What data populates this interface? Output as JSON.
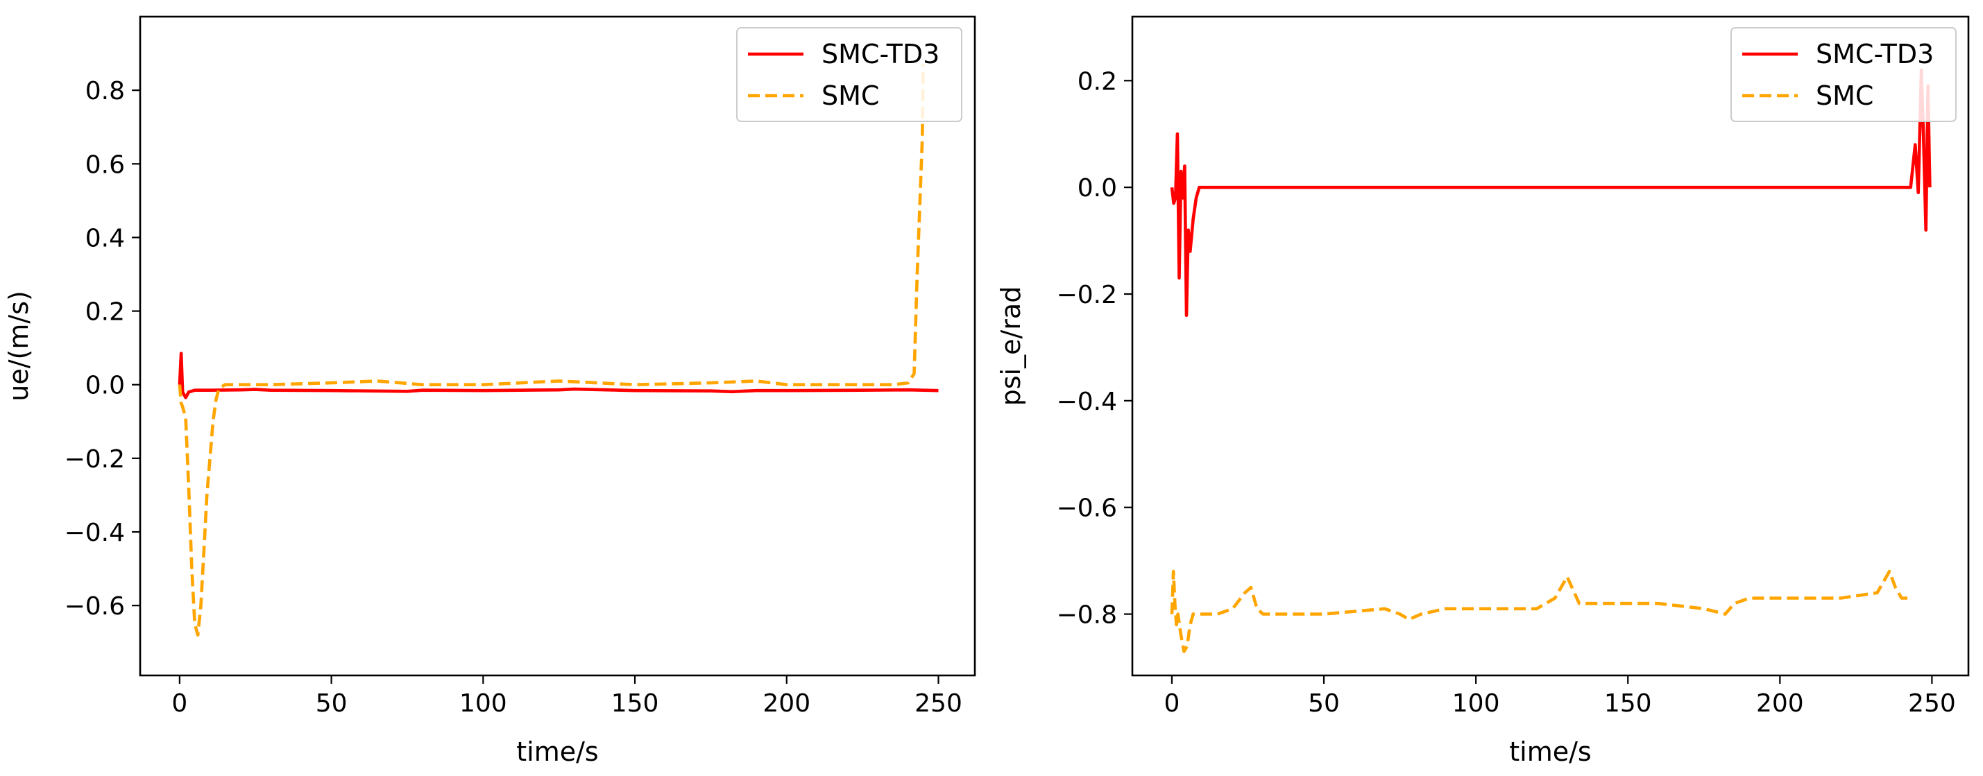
{
  "chart_data": [
    {
      "type": "line",
      "title": "",
      "xlabel": "time/s",
      "ylabel": "ue/(m/s)",
      "xlim": [
        -13,
        262
      ],
      "ylim": [
        -0.79,
        1.0
      ],
      "xticks": [
        0,
        50,
        100,
        150,
        200,
        250
      ],
      "yticks": [
        -0.6,
        -0.4,
        -0.2,
        0.0,
        0.2,
        0.4,
        0.6,
        0.8
      ],
      "xtick_labels": [
        "0",
        "50",
        "100",
        "150",
        "200",
        "250"
      ],
      "ytick_labels": [
        "−0.6",
        "−0.4",
        "−0.2",
        "0.0",
        "0.2",
        "0.4",
        "0.6",
        "0.8"
      ],
      "grid": false,
      "legend": "top-right",
      "series": [
        {
          "name": "SMC-TD3",
          "color": "#ff0000",
          "style": "solid",
          "x": [
            0,
            0.5,
            1,
            2,
            3,
            5,
            10,
            20,
            25,
            30,
            50,
            75,
            80,
            100,
            125,
            130,
            150,
            175,
            182,
            190,
            200,
            225,
            240,
            250
          ],
          "y": [
            0.0,
            0.085,
            -0.02,
            -0.035,
            -0.02,
            -0.015,
            -0.015,
            -0.014,
            -0.013,
            -0.015,
            -0.016,
            -0.018,
            -0.015,
            -0.016,
            -0.014,
            -0.012,
            -0.016,
            -0.017,
            -0.019,
            -0.016,
            -0.016,
            -0.015,
            -0.014,
            -0.016
          ]
        },
        {
          "name": "SMC",
          "color": "#ffa500",
          "style": "dashed",
          "x": [
            0,
            0.5,
            1,
            2,
            3,
            4,
            5,
            6,
            7,
            8,
            9,
            10,
            11,
            12,
            13,
            15,
            20,
            30,
            50,
            65,
            80,
            100,
            125,
            150,
            175,
            190,
            200,
            220,
            235,
            240,
            242,
            243,
            244,
            244.7,
            245
          ],
          "y": [
            0.0,
            -0.05,
            -0.06,
            -0.09,
            -0.28,
            -0.5,
            -0.65,
            -0.68,
            -0.6,
            -0.45,
            -0.3,
            -0.2,
            -0.1,
            -0.04,
            -0.01,
            0.0,
            0.0,
            0.0,
            0.005,
            0.01,
            0.0,
            0.0,
            0.01,
            0.0,
            0.005,
            0.01,
            0.0,
            0.0,
            0.0,
            0.005,
            0.03,
            0.3,
            0.52,
            0.67,
            0.87
          ]
        }
      ]
    },
    {
      "type": "line",
      "title": "",
      "xlabel": "time/s",
      "ylabel": "psi_e/rad",
      "xlim": [
        -13,
        262
      ],
      "ylim": [
        -0.915,
        0.32
      ],
      "xticks": [
        0,
        50,
        100,
        150,
        200,
        250
      ],
      "yticks": [
        -0.8,
        -0.6,
        -0.4,
        -0.2,
        0.0,
        0.2
      ],
      "xtick_labels": [
        "0",
        "50",
        "100",
        "150",
        "200",
        "250"
      ],
      "ytick_labels": [
        "−0.8",
        "−0.6",
        "−0.4",
        "−0.2",
        "0.0",
        "0.2"
      ],
      "grid": false,
      "legend": "top-right",
      "series": [
        {
          "name": "SMC-TD3",
          "color": "#ff0000",
          "style": "solid",
          "x": [
            0,
            0.6,
            1.2,
            1.8,
            2.4,
            3,
            3.6,
            4.2,
            4.8,
            5.4,
            6,
            7,
            8,
            9,
            10,
            50,
            100,
            150,
            200,
            240,
            243,
            244.5,
            245.5,
            246.5,
            247.2,
            248,
            248.7,
            249.3
          ],
          "y": [
            0.0,
            -0.03,
            -0.02,
            0.1,
            -0.17,
            0.03,
            -0.02,
            0.04,
            -0.24,
            -0.08,
            -0.12,
            -0.06,
            -0.02,
            0.0,
            0.0,
            0.0,
            0.0,
            0.0,
            0.0,
            0.0,
            0.0,
            0.08,
            -0.01,
            0.22,
            0.1,
            -0.08,
            0.19,
            0.0
          ]
        },
        {
          "name": "SMC",
          "color": "#ffa500",
          "style": "dashed",
          "x": [
            0,
            0.5,
            1,
            1.5,
            2,
            3,
            4,
            5,
            6,
            7,
            8,
            10,
            15,
            20,
            24,
            26,
            28,
            30,
            50,
            70,
            75,
            78,
            82,
            90,
            100,
            120,
            126,
            130,
            134,
            140,
            160,
            175,
            182,
            185,
            190,
            200,
            220,
            232,
            236,
            238,
            240,
            243
          ],
          "y": [
            -0.8,
            -0.72,
            -0.78,
            -0.82,
            -0.8,
            -0.84,
            -0.87,
            -0.86,
            -0.82,
            -0.8,
            -0.8,
            -0.8,
            -0.8,
            -0.79,
            -0.76,
            -0.75,
            -0.79,
            -0.8,
            -0.8,
            -0.79,
            -0.8,
            -0.81,
            -0.8,
            -0.79,
            -0.79,
            -0.79,
            -0.77,
            -0.73,
            -0.78,
            -0.78,
            -0.78,
            -0.79,
            -0.8,
            -0.78,
            -0.77,
            -0.77,
            -0.77,
            -0.76,
            -0.72,
            -0.75,
            -0.77,
            -0.77
          ]
        }
      ]
    }
  ]
}
